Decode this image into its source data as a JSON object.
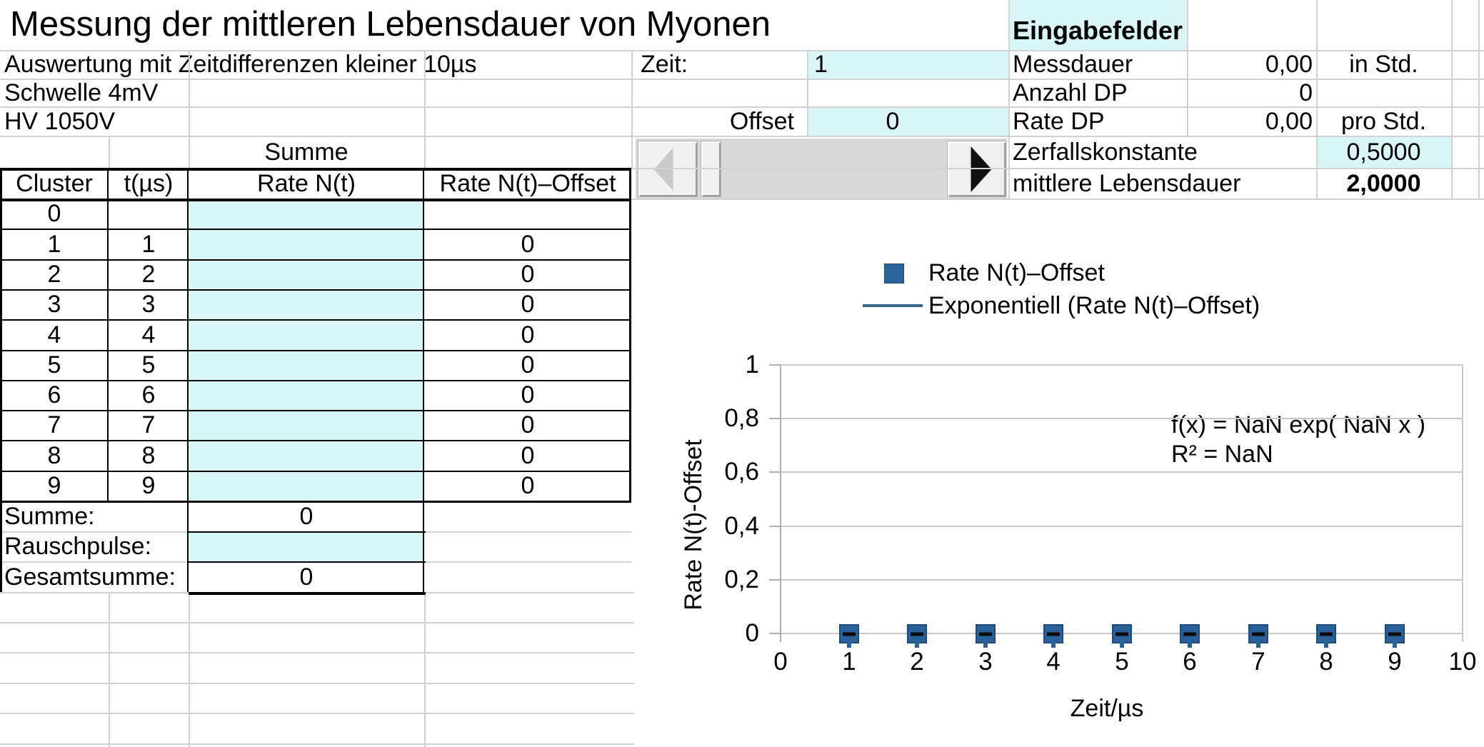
{
  "app": {
    "title": "Messung der mittleren Lebensdauer von Myonen"
  },
  "params": {
    "line1": "Auswertung mit Zeitdifferenzen kleiner 10µs",
    "line2": "Schwelle 4mV",
    "line3": "HV 1050V"
  },
  "inputs": {
    "zeit_label": "Zeit:",
    "zeit_value": "1",
    "offset_label": "Offset",
    "offset_value": "0"
  },
  "eingabe": {
    "header": "Eingabefelder",
    "messdauer_label": "Messdauer",
    "messdauer_value": "0,00",
    "messdauer_unit": "in Std.",
    "anzahl_label": "Anzahl DP",
    "anzahl_value": "0",
    "rate_label": "Rate DP",
    "rate_value": "0,00",
    "rate_unit": "pro Std.",
    "zerfall_label": "Zerfallskonstante",
    "zerfall_value": "0,5000",
    "lebensdauer_label": "mittlere Lebensdauer",
    "lebensdauer_value": "2,0000"
  },
  "table": {
    "summe_group_header": "Summe",
    "col_cluster": "Cluster",
    "col_t": "t(µs)",
    "col_rate": "Rate N(t)",
    "col_offset": "Rate N(t)–Offset",
    "rows": [
      {
        "cluster": "0",
        "t": "",
        "rate": "",
        "offset": ""
      },
      {
        "cluster": "1",
        "t": "1",
        "rate": "",
        "offset": "0"
      },
      {
        "cluster": "2",
        "t": "2",
        "rate": "",
        "offset": "0"
      },
      {
        "cluster": "3",
        "t": "3",
        "rate": "",
        "offset": "0"
      },
      {
        "cluster": "4",
        "t": "4",
        "rate": "",
        "offset": "0"
      },
      {
        "cluster": "5",
        "t": "5",
        "rate": "",
        "offset": "0"
      },
      {
        "cluster": "6",
        "t": "6",
        "rate": "",
        "offset": "0"
      },
      {
        "cluster": "7",
        "t": "7",
        "rate": "",
        "offset": "0"
      },
      {
        "cluster": "8",
        "t": "8",
        "rate": "",
        "offset": "0"
      },
      {
        "cluster": "9",
        "t": "9",
        "rate": "",
        "offset": "0"
      }
    ],
    "summe_label": "Summe:",
    "summe_value": "0",
    "rauschpulse_label": "Rauschpulse:",
    "rauschpulse_value": "",
    "gesamtsumme_label": "Gesamtsumme:",
    "gesamtsumme_value": "0"
  },
  "chart_data": {
    "type": "scatter",
    "x": [
      1,
      2,
      3,
      4,
      5,
      6,
      7,
      8,
      9
    ],
    "series": [
      {
        "name": "Rate N(t)–Offset",
        "values": [
          0,
          0,
          0,
          0,
          0,
          0,
          0,
          0,
          0
        ]
      }
    ],
    "trendline": {
      "name": "Exponentiell (Rate N(t)–Offset)",
      "equation": "f(x) = NaN exp( NaN x )",
      "r2": "R² = NaN",
      "visible": false
    },
    "xlabel": "Zeit/µs",
    "ylabel": "Rate N(t)-Offset",
    "xlim": [
      0,
      10
    ],
    "ylim": [
      0,
      1
    ],
    "xtick_values": [
      0,
      1,
      2,
      3,
      4,
      5,
      6,
      7,
      8,
      9,
      10
    ],
    "xtick_labels": [
      "0",
      "1",
      "2",
      "3",
      "4",
      "5",
      "6",
      "7",
      "8",
      "9",
      "10"
    ],
    "ytick_values": [
      0,
      0.2,
      0.4,
      0.6,
      0.8,
      1
    ],
    "ytick_labels": [
      "0",
      "0,2",
      "0,4",
      "0,6",
      "0,8",
      "1"
    ],
    "grid": "horizontal-only",
    "legend_position": "top-center",
    "marker_color": "#2a619b",
    "line_color": "#35688f"
  },
  "colors": {
    "input_cell_cyan": "#d9f6f6",
    "accent_blue": "#2a619b"
  }
}
